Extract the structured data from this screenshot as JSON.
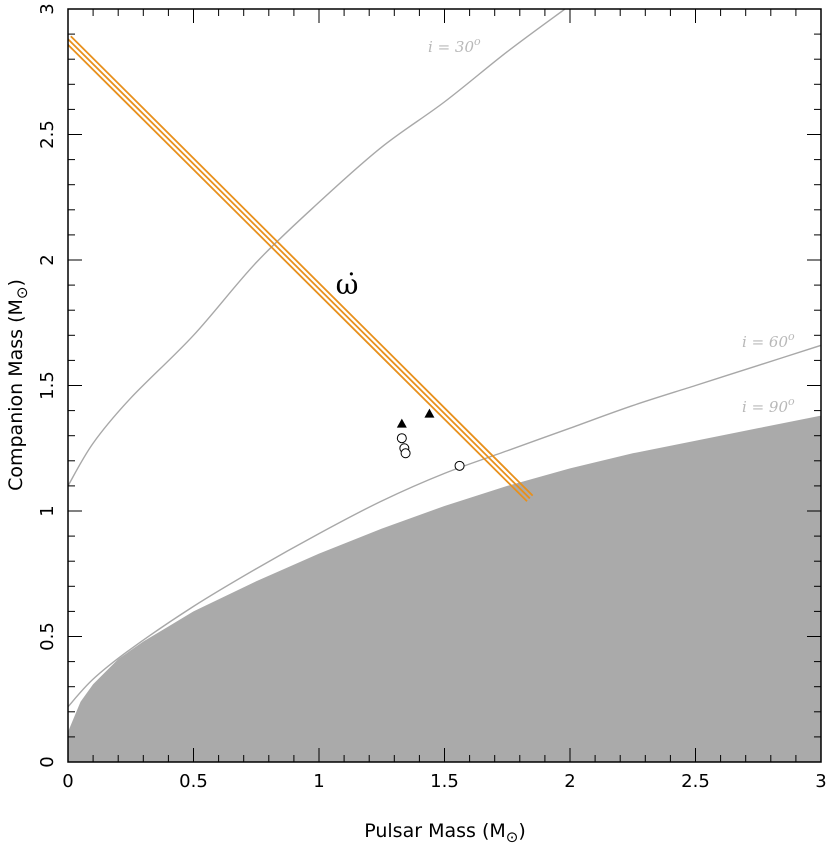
{
  "chart_data": {
    "type": "scatter",
    "xlabel": "Pulsar Mass (M",
    "xlabel_sub": "⊙",
    "xlabel_close": ")",
    "ylabel": "Companion Mass (M",
    "ylabel_sub": "⊙",
    "ylabel_close": ")",
    "xlim": [
      0,
      3
    ],
    "ylim": [
      0,
      3
    ],
    "xticks": [
      0,
      0.5,
      1,
      1.5,
      2,
      2.5,
      3
    ],
    "xtick_labels": [
      "0",
      "0.5",
      "1",
      "1.5",
      "2",
      "2.5",
      "3"
    ],
    "yticks": [
      0,
      0.5,
      1,
      1.5,
      2,
      2.5,
      3
    ],
    "ytick_labels": [
      "0",
      "0.5",
      "1",
      "1.5",
      "2",
      "2.5",
      "3"
    ],
    "grid": false,
    "excluded_region": {
      "color": "#aaaaaa",
      "boundary": [
        [
          0,
          0.12
        ],
        [
          0.05,
          0.24
        ],
        [
          0.1,
          0.31
        ],
        [
          0.2,
          0.41
        ],
        [
          0.3,
          0.48
        ],
        [
          0.4,
          0.54
        ],
        [
          0.5,
          0.6
        ],
        [
          0.75,
          0.72
        ],
        [
          1.0,
          0.83
        ],
        [
          1.25,
          0.93
        ],
        [
          1.5,
          1.02
        ],
        [
          1.75,
          1.1
        ],
        [
          2.0,
          1.17
        ],
        [
          2.25,
          1.23
        ],
        [
          2.5,
          1.28
        ],
        [
          2.75,
          1.33
        ],
        [
          3.0,
          1.38
        ]
      ]
    },
    "inclination_curves": [
      {
        "label": "i = 30°",
        "label_text": "i = 30",
        "label_sup": "o",
        "color": "#a8a8a8",
        "points": [
          [
            0,
            1.1
          ],
          [
            0.1,
            1.27
          ],
          [
            0.25,
            1.45
          ],
          [
            0.5,
            1.7
          ],
          [
            0.75,
            1.99
          ],
          [
            1.0,
            2.23
          ],
          [
            1.25,
            2.45
          ],
          [
            1.5,
            2.63
          ],
          [
            1.75,
            2.83
          ],
          [
            1.98,
            3.0
          ]
        ]
      },
      {
        "label": "i = 60°",
        "label_text": "i = 60",
        "label_sup": "o",
        "color": "#a8a8a8",
        "points": [
          [
            0,
            0.22
          ],
          [
            0.1,
            0.33
          ],
          [
            0.25,
            0.45
          ],
          [
            0.5,
            0.62
          ],
          [
            0.75,
            0.77
          ],
          [
            1.0,
            0.91
          ],
          [
            1.25,
            1.04
          ],
          [
            1.5,
            1.15
          ],
          [
            1.75,
            1.24
          ],
          [
            2.0,
            1.33
          ],
          [
            2.25,
            1.42
          ],
          [
            2.5,
            1.5
          ],
          [
            2.75,
            1.58
          ],
          [
            3.0,
            1.66
          ]
        ]
      }
    ],
    "curve_90_label": {
      "label": "i = 90°",
      "label_text": "i = 90",
      "label_sup": "o"
    },
    "omega_dot_band": {
      "label": "ω̇",
      "color": "#e8901c",
      "start": [
        0,
        2.88
      ],
      "end": [
        1.84,
        1.05
      ]
    },
    "series": [
      {
        "marker": "triangle",
        "points": [
          [
            1.33,
            1.35
          ],
          [
            1.44,
            1.39
          ]
        ]
      },
      {
        "marker": "circle",
        "points": [
          [
            1.33,
            1.29
          ],
          [
            1.34,
            1.25
          ],
          [
            1.345,
            1.23
          ],
          [
            1.56,
            1.18
          ]
        ]
      }
    ]
  }
}
